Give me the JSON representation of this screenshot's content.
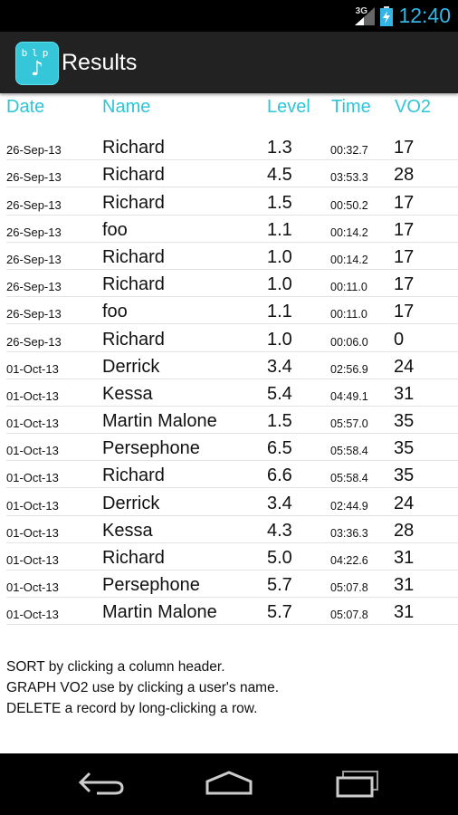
{
  "status_bar": {
    "network": "3G",
    "time": "12:40",
    "icons": [
      "signal-icon",
      "battery-charging-icon"
    ]
  },
  "action_bar": {
    "title": "Results",
    "app_icon_text": "blp",
    "app_icon": "music-note-icon"
  },
  "table": {
    "columns": [
      "Date",
      "Name",
      "Level",
      "Time",
      "VO2"
    ],
    "rows": [
      [
        "26-Sep-13",
        "Richard",
        "1.3",
        "00:32.7",
        "17"
      ],
      [
        "26-Sep-13",
        "Richard",
        "4.5",
        "03:53.3",
        "28"
      ],
      [
        "26-Sep-13",
        "Richard",
        "1.5",
        "00:50.2",
        "17"
      ],
      [
        "26-Sep-13",
        "foo",
        "1.1",
        "00:14.2",
        "17"
      ],
      [
        "26-Sep-13",
        "Richard",
        "1.0",
        "00:14.2",
        "17"
      ],
      [
        "26-Sep-13",
        "Richard",
        "1.0",
        "00:11.0",
        "17"
      ],
      [
        "26-Sep-13",
        "foo",
        "1.1",
        "00:11.0",
        "17"
      ],
      [
        "26-Sep-13",
        "Richard",
        "1.0",
        "00:06.0",
        "0"
      ],
      [
        "01-Oct-13",
        "Derrick",
        "3.4",
        "02:56.9",
        "24"
      ],
      [
        "01-Oct-13",
        "Kessa",
        "5.4",
        "04:49.1",
        "31"
      ],
      [
        "01-Oct-13",
        "Martin Malone",
        "1.5",
        "05:57.0",
        "35"
      ],
      [
        "01-Oct-13",
        "Persephone",
        "6.5",
        "05:58.4",
        "35"
      ],
      [
        "01-Oct-13",
        "Richard",
        "6.6",
        "05:58.4",
        "35"
      ],
      [
        "01-Oct-13",
        "Derrick",
        "3.4",
        "02:44.9",
        "24"
      ],
      [
        "01-Oct-13",
        "Kessa",
        "4.3",
        "03:36.3",
        "28"
      ],
      [
        "01-Oct-13",
        "Richard",
        "5.0",
        "04:22.6",
        "31"
      ],
      [
        "01-Oct-13",
        "Persephone",
        "5.7",
        "05:07.8",
        "31"
      ],
      [
        "01-Oct-13",
        "Martin Malone",
        "5.7",
        "05:07.8",
        "31"
      ]
    ]
  },
  "instructions": [
    "SORT by clicking a column header.",
    "GRAPH VO2 use by clicking a user's name.",
    "DELETE a record by long-clicking a row."
  ],
  "nav_bar": {
    "icons": [
      "back-icon",
      "home-icon",
      "recent-apps-icon"
    ]
  },
  "colors": {
    "accent": "#2cc6d6",
    "clock": "#33b5e5",
    "action_bar": "#222222"
  }
}
